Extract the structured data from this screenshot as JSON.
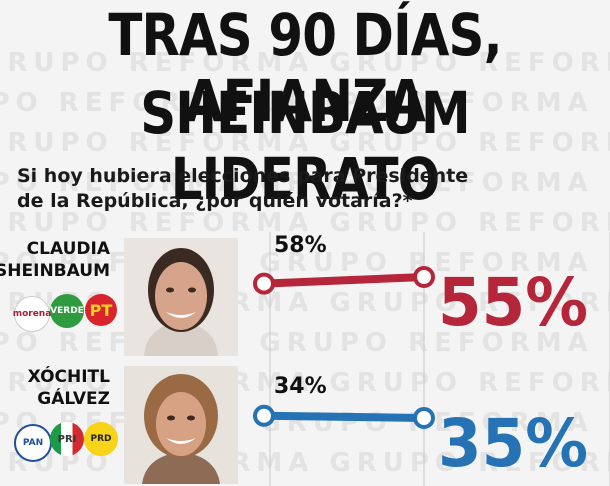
{
  "headline": {
    "line1": "TRAS 90 DÍAS, AFIANZA",
    "line2": "SHEINBAUM LIDERATO"
  },
  "watermark_text": "GRUPO REFORMA",
  "question": {
    "line1": "Si hoy hubiera elecciones para Presidente",
    "line2": "de la República, ¿por quién votaría?*"
  },
  "candidates": [
    {
      "name_line1": "CLAUDIA",
      "name_line2": "SHEINBAUM",
      "parties": [
        "morena",
        "VERDE",
        "PT"
      ],
      "color": "#b5263a"
    },
    {
      "name_line1": "XÓCHITL",
      "name_line2": "GÁLVEZ",
      "parties": [
        "PAN",
        "PRI",
        "PRD"
      ],
      "color": "#2573b5"
    }
  ],
  "chart_data": {
    "type": "line",
    "series": [
      {
        "name": "CLAUDIA SHEINBAUM",
        "values": [
          58,
          55
        ],
        "start_label": "58%",
        "end_label": "55%",
        "color": "#b5263a"
      },
      {
        "name": "XÓCHITL GÁLVEZ",
        "values": [
          34,
          35
        ],
        "start_label": "34%",
        "end_label": "35%",
        "color": "#2573b5"
      }
    ],
    "grid": true
  }
}
